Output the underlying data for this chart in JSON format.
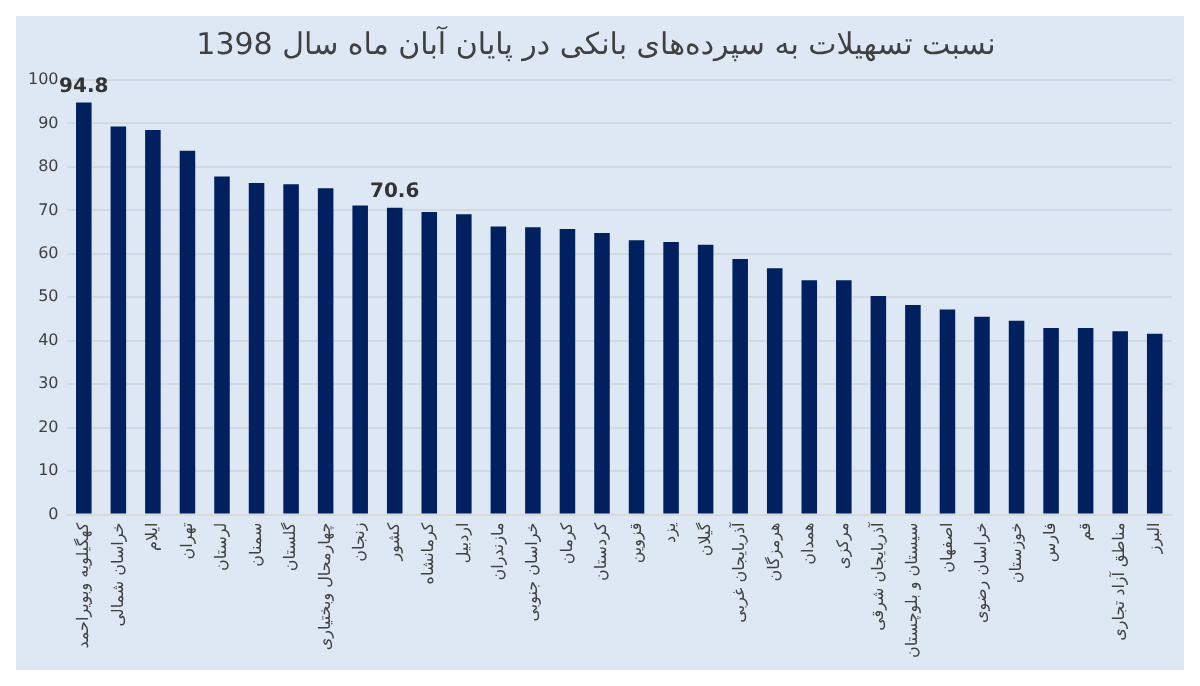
{
  "chart_data": {
    "type": "bar",
    "title": "نسبت تسهیلات به سپرده‌های بانکی در پایان آبان ماه سال 1398",
    "categories": [
      "کهگیلویه وبویراحمد",
      "خراسان شمالی",
      "ایلام",
      "تهران",
      "لرستان",
      "سمنان",
      "گلستان",
      "چهارمحال وبختیاری",
      "زنجان",
      "کشور",
      "کرمانشاه",
      "اردبیل",
      "مازندران",
      "خراسان جنوبی",
      "کرمان",
      "کردستان",
      "قزوین",
      "یزد",
      "گیلان",
      "آذربایجان غربی",
      "هرمزگان",
      "همدان",
      "مرکزی",
      "آذربایجان شرقی",
      "سیستان و بلوچستان",
      "اصفهان",
      "خراسان رضوی",
      "خوزستان",
      "فارس",
      "قم",
      "مناطق آزاد تجاری",
      "البرز"
    ],
    "values": [
      94.8,
      89.3,
      88.5,
      83.7,
      77.8,
      76.3,
      76.0,
      75.1,
      71.1,
      70.6,
      69.6,
      69.1,
      66.3,
      66.1,
      65.7,
      64.8,
      63.1,
      62.7,
      62.1,
      58.8,
      56.7,
      53.9,
      53.9,
      50.3,
      48.2,
      47.2,
      45.5,
      44.6,
      42.9,
      42.9,
      42.2,
      41.6
    ],
    "value_labels": [
      "94.8",
      null,
      null,
      null,
      null,
      null,
      null,
      null,
      null,
      "70.6",
      null,
      null,
      null,
      null,
      null,
      null,
      null,
      null,
      null,
      null,
      null,
      null,
      null,
      null,
      null,
      null,
      null,
      null,
      null,
      null,
      null,
      null
    ],
    "color": "#002060",
    "ylim": [
      0,
      100
    ],
    "yticks": [
      0,
      10,
      20,
      30,
      40,
      50,
      60,
      70,
      80,
      90,
      100
    ],
    "grid": "y"
  }
}
